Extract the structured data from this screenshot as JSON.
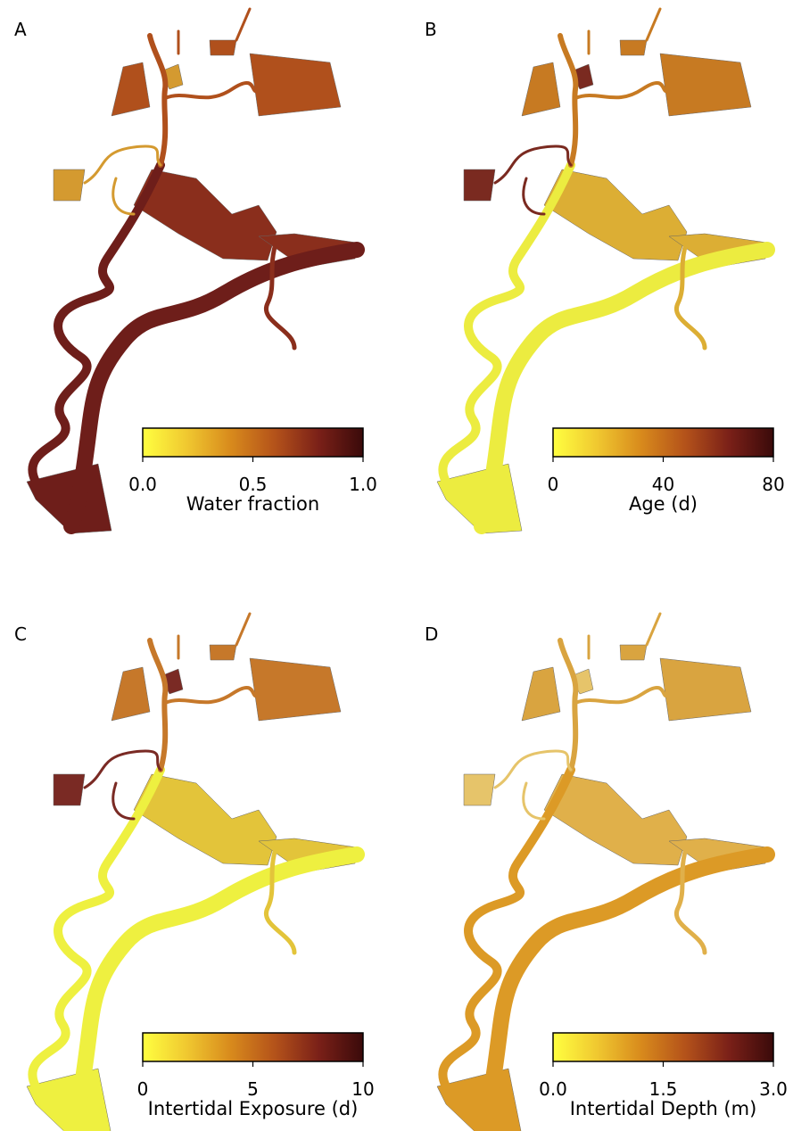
{
  "colormap": [
    "#ffff40",
    "#f0c830",
    "#d88a1c",
    "#b4521a",
    "#7a2018",
    "#3a0a0a"
  ],
  "panels": [
    {
      "label": "A",
      "colorbar": {
        "label": "Water fraction",
        "lim": [
          0,
          1
        ],
        "ticks": [
          {
            "value": 0,
            "label": "0.0"
          },
          {
            "value": 0.5,
            "label": "0.5"
          },
          {
            "value": 1,
            "label": "1.0"
          }
        ]
      },
      "map_colors": [
        "#6e1e1a",
        "#8a2e1c",
        "#b0501c",
        "#d49a30"
      ]
    },
    {
      "label": "B",
      "colorbar": {
        "label": "Age (d)",
        "lim": [
          0,
          80
        ],
        "ticks": [
          0,
          40,
          80
        ]
      },
      "map_colors": [
        "#ecec40",
        "#dcae34",
        "#c77a22",
        "#7a2a20"
      ]
    },
    {
      "label": "C",
      "colorbar": {
        "label": "Intertidal Exposure (d)",
        "lim": [
          0,
          10
        ],
        "ticks": [
          0,
          5,
          10
        ]
      },
      "map_colors": [
        "#eef040",
        "#e3c43a",
        "#c6782a",
        "#7a2a24"
      ]
    },
    {
      "label": "D",
      "colorbar": {
        "label": "Intertidal Depth (m)",
        "lim": [
          0,
          3
        ],
        "ticks": [
          {
            "value": 0,
            "label": "0.0"
          },
          {
            "value": 1.5,
            "label": "1.5"
          },
          {
            "value": 3,
            "label": "3.0"
          }
        ]
      },
      "map_colors": [
        "#dc9a26",
        "#e0b04a",
        "#d9a440",
        "#e6c46a"
      ]
    }
  ]
}
